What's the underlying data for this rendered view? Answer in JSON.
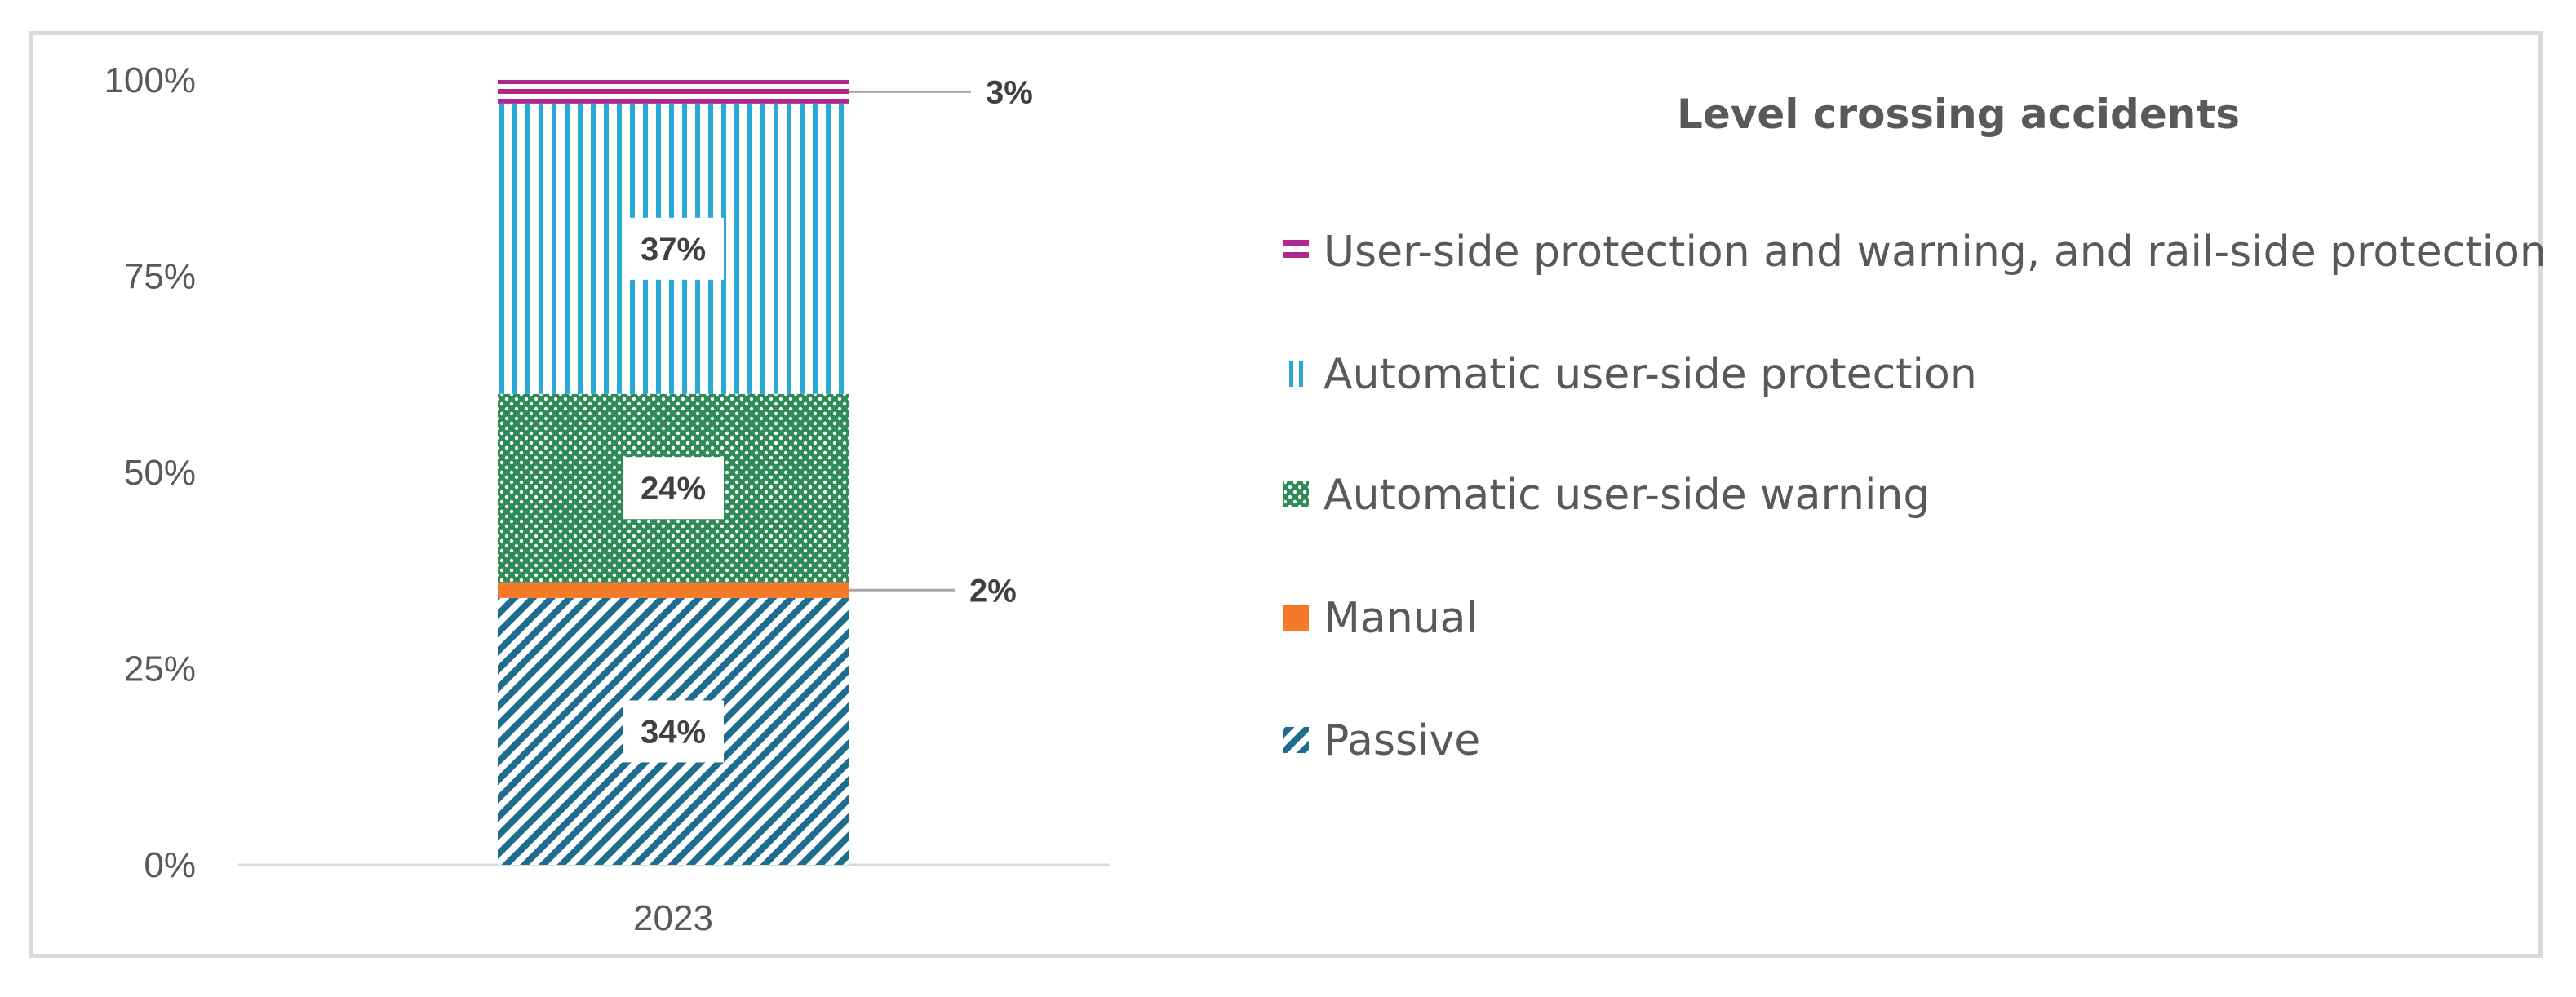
{
  "chart_data": {
    "type": "bar",
    "stacked": true,
    "categories": [
      "2023"
    ],
    "ylim": [
      0,
      100
    ],
    "y_ticks": [
      "0%",
      "25%",
      "50%",
      "75%",
      "100%"
    ],
    "y_tick_values": [
      0,
      25,
      50,
      75,
      100
    ],
    "legend_title": "Level crossing accidents",
    "legend_position": "right",
    "series": [
      {
        "name": "Passive",
        "values": [
          34
        ],
        "label": "34%",
        "color": "#1f6d8c",
        "pattern": "diagonal-hatch",
        "icon": "hatch-icon"
      },
      {
        "name": "Manual",
        "values": [
          2
        ],
        "label": "2%",
        "color": "#f47a2a",
        "pattern": "solid",
        "icon": "solid-square-icon"
      },
      {
        "name": "Automatic user-side warning",
        "values": [
          24
        ],
        "label": "24%",
        "color": "#2e8b57",
        "pattern": "dots",
        "icon": "dotted-square-icon"
      },
      {
        "name": "Automatic user-side protection",
        "values": [
          37
        ],
        "label": "37%",
        "color": "#29a9d6",
        "pattern": "vertical-lines",
        "icon": "vertical-lines-icon"
      },
      {
        "name": "User-side protection and warning, and rail-side protection",
        "values": [
          3
        ],
        "label": "3%",
        "color": "#b0278f",
        "pattern": "horizontal-lines",
        "icon": "horizontal-lines-icon"
      }
    ]
  }
}
